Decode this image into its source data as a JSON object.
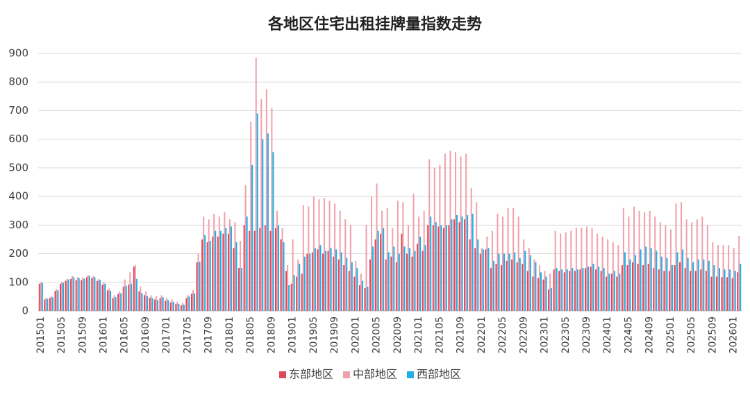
{
  "chart_data": {
    "type": "bar",
    "title": "各地区住宅出租挂牌量指数走势",
    "categories": [
      "201501",
      null,
      null,
      null,
      "201505",
      null,
      null,
      null,
      "201509",
      null,
      null,
      null,
      "201601",
      null,
      null,
      null,
      "201605",
      null,
      null,
      null,
      "201609",
      null,
      null,
      null,
      "201701",
      null,
      null,
      null,
      "201705",
      null,
      null,
      null,
      "201709",
      null,
      null,
      null,
      "201801",
      null,
      null,
      null,
      "201805",
      null,
      null,
      null,
      "201809",
      null,
      null,
      null,
      "201901",
      null,
      null,
      null,
      "201905",
      null,
      null,
      null,
      "201909",
      null,
      null,
      null,
      "202001",
      null,
      null,
      null,
      "202005",
      null,
      null,
      null,
      "202009",
      null,
      null,
      null,
      "202101",
      null,
      null,
      null,
      "202105",
      null,
      null,
      null,
      "202109",
      null,
      null,
      null,
      "202201",
      null,
      null,
      null,
      "202205",
      null,
      null,
      null,
      "202209",
      null,
      null,
      null,
      "202301",
      null,
      null,
      null,
      "202305",
      null,
      null,
      null,
      "202309",
      null,
      null,
      null,
      "202401",
      null,
      null,
      null,
      "202405",
      null,
      null,
      null,
      "202409",
      null,
      null,
      null,
      "202501",
      null,
      null,
      null,
      "202505",
      null,
      null,
      null,
      "202509",
      null,
      null,
      null,
      "202601",
      null
    ],
    "series": [
      {
        "name": "东部地区",
        "color": "#e0475a",
        "values": [
          95,
          40,
          46,
          70,
          95,
          105,
          112,
          108,
          108,
          118,
          115,
          105,
          92,
          72,
          45,
          60,
          85,
          92,
          155,
          68,
          55,
          46,
          40,
          45,
          36,
          30,
          24,
          20,
          45,
          60,
          170,
          250,
          240,
          260,
          260,
          270,
          270,
          220,
          150,
          300,
          280,
          280,
          290,
          300,
          280,
          290,
          250,
          140,
          95,
          120,
          130,
          200,
          205,
          215,
          200,
          210,
          190,
          180,
          160,
          140,
          120,
          90,
          80,
          180,
          250,
          270,
          180,
          190,
          170,
          270,
          200,
          190,
          235,
          210,
          300,
          300,
          295,
          290,
          300,
          320,
          310,
          320,
          250,
          220,
          200,
          215,
          150,
          165,
          160,
          175,
          180,
          170,
          165,
          140,
          120,
          115,
          110,
          75,
          145,
          140,
          135,
          140,
          140,
          145,
          150,
          155,
          145,
          140,
          120,
          130,
          120,
          160,
          160,
          170,
          165,
          160,
          165,
          150,
          145,
          140,
          140,
          160,
          170,
          150,
          140,
          140,
          145,
          140,
          120,
          120,
          118,
          118,
          115,
          135
        ]
      },
      {
        "name": "中部地区",
        "color": "#f0a0aa",
        "values": [
          100,
          46,
          52,
          76,
          102,
          112,
          122,
          118,
          118,
          126,
          122,
          112,
          100,
          78,
          55,
          68,
          110,
          135,
          160,
          85,
          68,
          55,
          52,
          55,
          45,
          40,
          32,
          28,
          55,
          72,
          200,
          330,
          320,
          340,
          330,
          345,
          320,
          310,
          245,
          440,
          660,
          885,
          740,
          775,
          710,
          350,
          290,
          160,
          250,
          180,
          370,
          365,
          400,
          390,
          395,
          385,
          375,
          350,
          320,
          300,
          175,
          130,
          300,
          400,
          445,
          350,
          360,
          290,
          385,
          380,
          300,
          410,
          330,
          350,
          530,
          500,
          510,
          550,
          560,
          555,
          540,
          550,
          430,
          380,
          220,
          260,
          280,
          340,
          330,
          360,
          360,
          330,
          250,
          220,
          180,
          160,
          140,
          130,
          280,
          270,
          275,
          280,
          290,
          290,
          295,
          290,
          270,
          260,
          250,
          240,
          230,
          360,
          330,
          365,
          350,
          345,
          350,
          330,
          310,
          300,
          285,
          375,
          380,
          320,
          310,
          320,
          330,
          300,
          240,
          230,
          230,
          230,
          220,
          262
        ]
      },
      {
        "name": "西部地区",
        "color": "#1fb0e6",
        "values": [
          98,
          42,
          48,
          72,
          98,
          110,
          118,
          115,
          112,
          122,
          118,
          108,
          95,
          70,
          48,
          62,
          88,
          95,
          112,
          62,
          52,
          45,
          38,
          48,
          38,
          32,
          25,
          22,
          50,
          62,
          172,
          265,
          245,
          280,
          280,
          290,
          295,
          240,
          150,
          330,
          510,
          690,
          600,
          620,
          555,
          300,
          240,
          90,
          125,
          165,
          190,
          200,
          220,
          230,
          210,
          220,
          215,
          205,
          185,
          170,
          150,
          105,
          85,
          225,
          280,
          290,
          205,
          225,
          200,
          225,
          220,
          210,
          260,
          230,
          330,
          310,
          300,
          300,
          320,
          335,
          330,
          335,
          340,
          250,
          215,
          220,
          175,
          200,
          200,
          200,
          205,
          185,
          210,
          195,
          170,
          135,
          120,
          80,
          150,
          145,
          145,
          150,
          145,
          150,
          155,
          165,
          155,
          150,
          130,
          140,
          130,
          205,
          180,
          195,
          215,
          225,
          220,
          210,
          190,
          185,
          160,
          205,
          215,
          185,
          170,
          180,
          180,
          175,
          160,
          150,
          145,
          145,
          140,
          165
        ]
      }
    ],
    "ylim": [
      0,
      900
    ],
    "yticks": [
      0,
      100,
      200,
      300,
      400,
      500,
      600,
      700,
      800,
      900
    ],
    "grid": true,
    "legend": "bottom"
  }
}
